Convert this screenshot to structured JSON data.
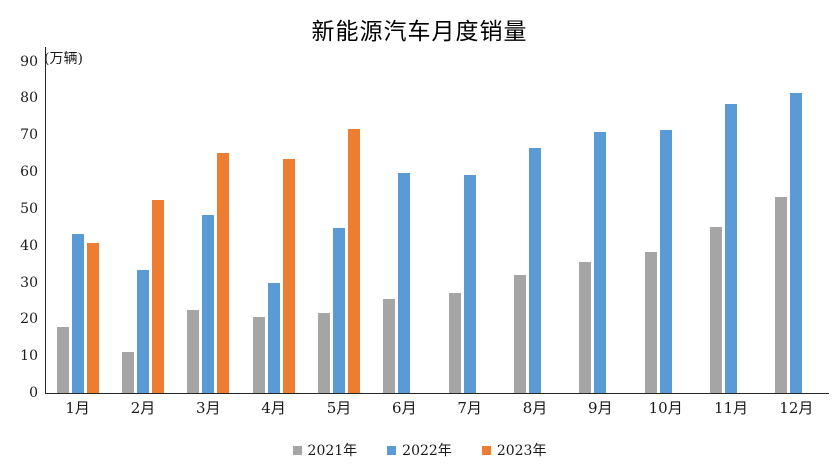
{
  "chart_data": {
    "type": "bar",
    "title": "新能源汽车月度销量",
    "ylabel": "(万辆)",
    "xlabel": "",
    "categories": [
      "1月",
      "2月",
      "3月",
      "4月",
      "5月",
      "6月",
      "7月",
      "8月",
      "9月",
      "10月",
      "11月",
      "12月"
    ],
    "series": [
      {
        "name": "2021年",
        "color": "#A5A5A5",
        "values": [
          17.9,
          11.0,
          22.6,
          20.6,
          21.7,
          25.6,
          27.1,
          32.1,
          35.7,
          38.3,
          45.0,
          53.1
        ]
      },
      {
        "name": "2022年",
        "color": "#5B9BD5",
        "values": [
          43.1,
          33.4,
          48.4,
          29.9,
          44.7,
          59.6,
          59.3,
          66.6,
          70.8,
          71.4,
          78.6,
          81.4
        ]
      },
      {
        "name": "2023年",
        "color": "#ED7D31",
        "values": [
          40.8,
          52.5,
          65.3,
          63.6,
          71.7,
          null,
          null,
          null,
          null,
          null,
          null,
          null
        ]
      }
    ],
    "ylim": [
      0,
      90
    ],
    "ytick_step": 10,
    "grid": false,
    "legend_position": "bottom"
  },
  "colors": {
    "axis": "#262626",
    "text": "#1a1a1a",
    "background": "#ffffff"
  }
}
